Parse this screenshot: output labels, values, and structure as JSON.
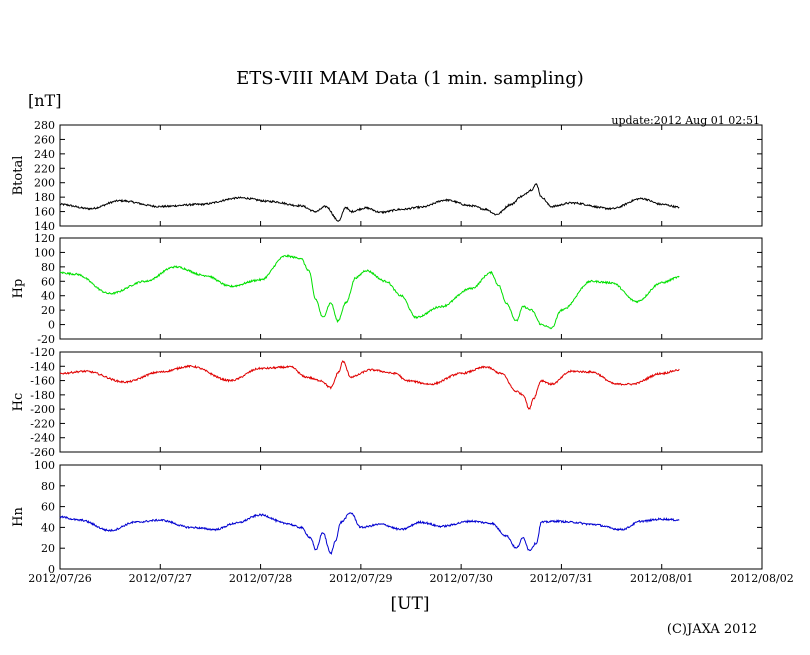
{
  "chart_data": {
    "type": "line",
    "title": "ETS-VIII MAM Data (1 min. sampling)",
    "unit_label": "[nT]",
    "update_text": "update:2012 Aug 01 02:51",
    "xlabel": "[UT]",
    "copyright": "(C)JAXA 2012",
    "x_tick_labels": [
      "2012/07/26",
      "2012/07/27",
      "2012/07/28",
      "2012/07/29",
      "2012/07/30",
      "2012/07/31",
      "2012/08/01",
      "2012/08/02"
    ],
    "x_range_days": [
      0,
      7
    ],
    "panels": [
      {
        "name": "Btotal",
        "ylabel": "Btotal",
        "color": "#000000",
        "ylim": [
          140,
          280
        ],
        "yticks": [
          "140",
          "160",
          "180",
          "200",
          "220",
          "240",
          "260",
          "280"
        ],
        "x": [
          0,
          0.3,
          0.6,
          1.0,
          1.4,
          1.8,
          2.1,
          2.4,
          2.55,
          2.65,
          2.78,
          2.85,
          2.9,
          3.05,
          3.2,
          3.4,
          3.6,
          3.85,
          4.1,
          4.25,
          4.35,
          4.5,
          4.6,
          4.7,
          4.75,
          4.8,
          4.9,
          5.1,
          5.5,
          5.8,
          6.0,
          6.18
        ],
        "y": [
          170,
          164,
          175,
          167,
          170,
          179,
          174,
          168,
          160,
          167,
          147,
          166,
          160,
          165,
          159,
          163,
          166,
          176,
          168,
          163,
          156,
          170,
          181,
          190,
          198,
          180,
          167,
          172,
          164,
          178,
          170,
          166
        ]
      },
      {
        "name": "Hp",
        "ylabel": "Hp",
        "color": "#00e000",
        "ylim": [
          -20,
          120
        ],
        "yticks": [
          "-20",
          "0",
          "20",
          "40",
          "60",
          "80",
          "100",
          "120"
        ],
        "x": [
          0,
          0.15,
          0.5,
          0.85,
          1.15,
          1.45,
          1.7,
          2.0,
          2.25,
          2.4,
          2.48,
          2.55,
          2.62,
          2.7,
          2.77,
          2.85,
          2.95,
          3.05,
          3.25,
          3.4,
          3.55,
          3.8,
          4.1,
          4.3,
          4.37,
          4.45,
          4.55,
          4.62,
          4.7,
          4.8,
          4.9,
          5.0,
          5.3,
          5.5,
          5.75,
          6.0,
          6.18
        ],
        "y": [
          72,
          70,
          43,
          60,
          80,
          68,
          53,
          62,
          95,
          92,
          75,
          35,
          10,
          30,
          5,
          30,
          65,
          75,
          60,
          40,
          10,
          25,
          50,
          72,
          55,
          30,
          5,
          25,
          20,
          0,
          -5,
          20,
          60,
          58,
          32,
          58,
          66
        ]
      },
      {
        "name": "Hc",
        "ylabel": "Hc",
        "color": "#e00000",
        "ylim": [
          -260,
          -120
        ],
        "yticks": [
          "-120",
          "-140",
          "-160",
          "-180",
          "-200",
          "-220",
          "-240",
          "-260"
        ],
        "x": [
          0,
          0.25,
          0.65,
          1.0,
          1.3,
          1.7,
          2.0,
          2.3,
          2.45,
          2.6,
          2.7,
          2.78,
          2.82,
          2.9,
          3.1,
          3.35,
          3.45,
          3.7,
          4.0,
          4.25,
          4.4,
          4.55,
          4.62,
          4.68,
          4.72,
          4.8,
          4.9,
          5.1,
          5.3,
          5.55,
          5.7,
          6.0,
          6.18
        ],
        "y": [
          -150,
          -147,
          -162,
          -148,
          -140,
          -160,
          -143,
          -141,
          -155,
          -160,
          -170,
          -148,
          -133,
          -155,
          -145,
          -150,
          -160,
          -165,
          -150,
          -141,
          -150,
          -175,
          -180,
          -200,
          -185,
          -160,
          -165,
          -147,
          -148,
          -165,
          -165,
          -150,
          -145
        ]
      },
      {
        "name": "Hn",
        "ylabel": "Hn",
        "color": "#0000d0",
        "ylim": [
          0,
          100
        ],
        "yticks": [
          "0",
          "20",
          "40",
          "60",
          "80",
          "100"
        ],
        "x": [
          0,
          0.2,
          0.5,
          0.75,
          1.0,
          1.3,
          1.55,
          1.75,
          2.0,
          2.25,
          2.4,
          2.5,
          2.55,
          2.62,
          2.7,
          2.75,
          2.8,
          2.9,
          3.0,
          3.2,
          3.4,
          3.6,
          3.8,
          4.1,
          4.3,
          4.45,
          4.55,
          4.62,
          4.68,
          4.75,
          4.8,
          4.95,
          5.1,
          5.3,
          5.6,
          5.8,
          6.0,
          6.18
        ],
        "y": [
          50,
          47,
          37,
          45,
          47,
          40,
          38,
          44,
          52,
          44,
          40,
          30,
          18,
          35,
          15,
          28,
          45,
          54,
          40,
          43,
          38,
          45,
          41,
          46,
          44,
          32,
          20,
          30,
          18,
          25,
          45,
          46,
          45,
          43,
          38,
          46,
          48,
          47
        ]
      }
    ]
  }
}
